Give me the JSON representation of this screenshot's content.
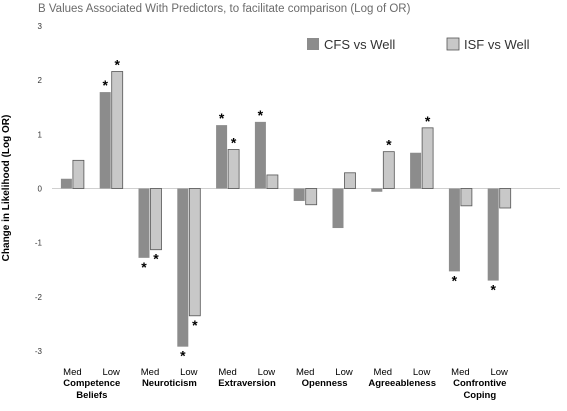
{
  "chart_data": {
    "type": "bar",
    "title": "B Values Associated With Predictors, to facilitate comparison (Log of OR)",
    "ylabel": "Change in Likelihood (Log OR)",
    "xlabel": "",
    "ylim": [
      -3,
      3
    ],
    "yticks": [
      3,
      2,
      1,
      0,
      -1,
      -2,
      -3
    ],
    "grid": false,
    "legend_position": "top-right",
    "groups": [
      {
        "label": "Competence Beliefs",
        "label_lines": [
          "Competence",
          "Beliefs"
        ],
        "categories": [
          "Med",
          "Low"
        ]
      },
      {
        "label": "Neuroticism",
        "label_lines": [
          "Neuroticism"
        ],
        "categories": [
          "Med",
          "Low"
        ]
      },
      {
        "label": "Extraversion",
        "label_lines": [
          "Extraversion"
        ],
        "categories": [
          "Med",
          "Low"
        ]
      },
      {
        "label": "Openness",
        "label_lines": [
          "Openness"
        ],
        "categories": [
          "Med",
          "Low"
        ]
      },
      {
        "label": "Agreeableness",
        "label_lines": [
          "Agreeableness"
        ],
        "categories": [
          "Med",
          "Low"
        ]
      },
      {
        "label": "Confrontive Coping",
        "label_lines": [
          "Confrontive",
          "Coping"
        ],
        "categories": [
          "Med",
          "Low"
        ]
      }
    ],
    "series": [
      {
        "name": "CFS vs Well",
        "color": "#8c8c8c",
        "values": [
          0.18,
          1.78,
          -1.28,
          -2.92,
          1.17,
          1.23,
          -0.23,
          -0.73,
          -0.06,
          0.66,
          -1.53,
          -1.7
        ],
        "significant": [
          false,
          true,
          true,
          true,
          true,
          true,
          false,
          false,
          false,
          false,
          true,
          true
        ]
      },
      {
        "name": "ISF vs Well",
        "color": "#c8c8c8",
        "values": [
          0.52,
          2.16,
          -1.13,
          -2.35,
          0.72,
          0.25,
          -0.3,
          0.29,
          0.68,
          1.12,
          -0.32,
          -0.36
        ],
        "significant": [
          false,
          true,
          true,
          true,
          true,
          false,
          false,
          false,
          true,
          true,
          false,
          false
        ]
      }
    ],
    "significance_marker": "*"
  }
}
